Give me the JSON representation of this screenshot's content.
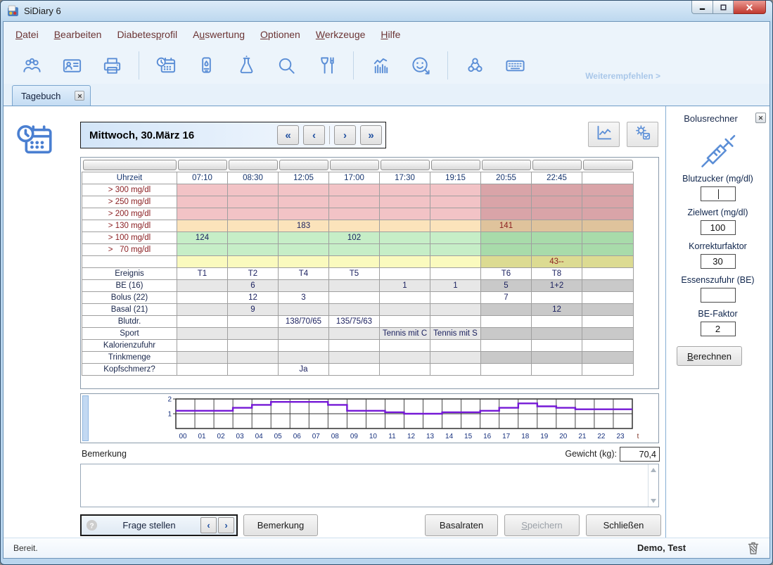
{
  "window": {
    "title": "SiDiary 6"
  },
  "menu": {
    "items": [
      {
        "label": "Datei",
        "u": 0
      },
      {
        "label": "Bearbeiten",
        "u": 0
      },
      {
        "label": "Diabetesprofil",
        "u": 8
      },
      {
        "label": "Auswertung",
        "u": 1
      },
      {
        "label": "Optionen",
        "u": 0
      },
      {
        "label": "Werkzeuge",
        "u": 0
      },
      {
        "label": "Hilfe",
        "u": 0
      }
    ]
  },
  "toolbar": {
    "groups": [
      [
        "users",
        "id-card",
        "printer"
      ],
      [
        "calendar-clock",
        "glucose-meter",
        "flask",
        "search",
        "glass-fork"
      ],
      [
        "statistics",
        "smiley"
      ],
      [
        "share",
        "keyboard"
      ]
    ],
    "recommend_link": "Weiterempfehlen >"
  },
  "tab": {
    "label": "Tagebuch"
  },
  "datebar": {
    "date": "Mittwoch, 30.März 16",
    "nav": [
      "«",
      "‹",
      "›",
      "»"
    ]
  },
  "table": {
    "time_label": "Uhrzeit",
    "times": [
      "07:10",
      "08:30",
      "12:05",
      "17:00",
      "17:30",
      "19:15",
      "20:55",
      "22:45"
    ],
    "dark_from_index": 6,
    "glucose_rows": [
      {
        "label": "> 300 mg/dl",
        "band": "red",
        "values": [
          "",
          "",
          "",
          "",
          "",
          "",
          "",
          "",
          ""
        ]
      },
      {
        "label": "> 250 mg/dl",
        "band": "red",
        "values": [
          "",
          "",
          "",
          "",
          "",
          "",
          "",
          "",
          ""
        ]
      },
      {
        "label": "> 200 mg/dl",
        "band": "red",
        "values": [
          "",
          "",
          "",
          "",
          "",
          "",
          "",
          "",
          ""
        ]
      },
      {
        "label": "> 130 mg/dl",
        "band": "orange",
        "values": [
          "",
          "",
          "183",
          "",
          "",
          "",
          "141",
          "",
          ""
        ]
      },
      {
        "label": "> 100 mg/dl",
        "band": "green",
        "values": [
          "124",
          "",
          "",
          "102",
          "",
          "",
          "",
          "",
          ""
        ]
      },
      {
        "label": ">   70 mg/dl",
        "band": "green",
        "values": [
          "",
          "",
          "",
          "",
          "",
          "",
          "",
          "",
          ""
        ]
      },
      {
        "label": "",
        "band": "yellow",
        "values": [
          "",
          "",
          "",
          "",
          "",
          "",
          "",
          "43--",
          ""
        ]
      }
    ],
    "metric_rows": [
      {
        "label": "Ereignis",
        "shaded": false,
        "values": [
          "T1",
          "T2",
          "T4",
          "T5",
          "",
          "",
          "T6",
          "T8",
          ""
        ]
      },
      {
        "label": "BE (16)",
        "shaded": true,
        "values": [
          "",
          "6",
          "",
          "",
          "1",
          "1",
          "5",
          "1+2",
          ""
        ]
      },
      {
        "label": "Bolus (22)",
        "shaded": false,
        "values": [
          "",
          "12",
          "3",
          "",
          "",
          "",
          "7",
          "",
          ""
        ]
      },
      {
        "label": "Basal (21)",
        "shaded": true,
        "values": [
          "",
          "9",
          "",
          "",
          "",
          "",
          "",
          "12",
          ""
        ]
      },
      {
        "label": "Blutdr.",
        "shaded": false,
        "values": [
          "",
          "",
          "138/70/65",
          "135/75/63",
          "",
          "",
          "",
          "",
          ""
        ]
      },
      {
        "label": "Sport",
        "shaded": true,
        "values": [
          "",
          "",
          "",
          "",
          "Tennis mit C",
          "Tennis mit S",
          "",
          "",
          ""
        ]
      },
      {
        "label": "Kalorienzufuhr",
        "shaded": false,
        "values": [
          "",
          "",
          "",
          "",
          "",
          "",
          "",
          "",
          ""
        ]
      },
      {
        "label": "Trinkmenge",
        "shaded": true,
        "values": [
          "",
          "",
          "",
          "",
          "",
          "",
          "",
          "",
          ""
        ]
      },
      {
        "label": "Kopfschmerz?",
        "shaded": false,
        "values": [
          "",
          "",
          "Ja",
          "",
          "",
          "",
          "",
          "",
          ""
        ]
      }
    ],
    "red_values": [
      "141",
      "43--"
    ]
  },
  "chart_data": {
    "type": "step-line",
    "description": "Basalraten-Tagesprofil (Einheiten pro Stunde)",
    "x_labels": [
      "00",
      "01",
      "02",
      "03",
      "04",
      "05",
      "06",
      "07",
      "08",
      "09",
      "10",
      "11",
      "12",
      "13",
      "14",
      "15",
      "16",
      "17",
      "18",
      "19",
      "20",
      "21",
      "22",
      "23",
      "t"
    ],
    "values": [
      1.2,
      1.2,
      1.2,
      1.4,
      1.6,
      1.8,
      1.8,
      1.8,
      1.6,
      1.2,
      1.2,
      1.1,
      1.0,
      1.0,
      1.1,
      1.1,
      1.2,
      1.4,
      1.7,
      1.5,
      1.4,
      1.3,
      1.3,
      1.3
    ],
    "y_ticks": [
      1,
      2
    ],
    "ylim": [
      0,
      2
    ],
    "grid": true,
    "line_color": "#7519d6"
  },
  "remark": {
    "label": "Bemerkung",
    "value": ""
  },
  "weight": {
    "label": "Gewicht (kg):",
    "value": "70,4"
  },
  "footer_buttons": {
    "ask": "Frage stellen",
    "ask_nav": [
      "‹",
      "›"
    ],
    "note": "Bemerkung",
    "basal": "Basalraten",
    "save": {
      "label": "Speichern",
      "u": 0
    },
    "close": "Schließen"
  },
  "bolus_calculator": {
    "title": "Bolusrechner",
    "fields": [
      {
        "label": "Blutzucker (mg/dl)",
        "value": ""
      },
      {
        "label": "Zielwert (mg/dl)",
        "value": "100"
      },
      {
        "label": "Korrekturfaktor",
        "value": "30"
      },
      {
        "label": "Essenszufuhr (BE)",
        "value": ""
      },
      {
        "label": "BE-Faktor",
        "value": "2"
      }
    ],
    "button": {
      "label": "Berechnen",
      "u": 0
    }
  },
  "statusbar": {
    "status": "Bereit.",
    "user": "Demo, Test"
  },
  "colors": {
    "toolbar_icon": "#5b8ed6",
    "link_blue": "#a9c7e9",
    "band_red_light": "#f2c3c6",
    "band_red_dark": "#d9a4a8",
    "band_orange_light": "#fbe3bb",
    "band_orange_dark": "#dfc39c",
    "band_green_light": "#c6eec7",
    "band_green_dark": "#a8dbaa",
    "band_yellow_light": "#fafabe",
    "band_yellow_dark": "#dcdb92",
    "band_grey_light": "#e7e7e7",
    "band_grey_dark": "#c9c9c9",
    "band_white": "#ffffff",
    "value_text": "#1c2260",
    "value_alert": "#8b1e1e",
    "glucose_label": "#8b2023",
    "metric_label": "#18254a",
    "time_label": "#16356e"
  }
}
